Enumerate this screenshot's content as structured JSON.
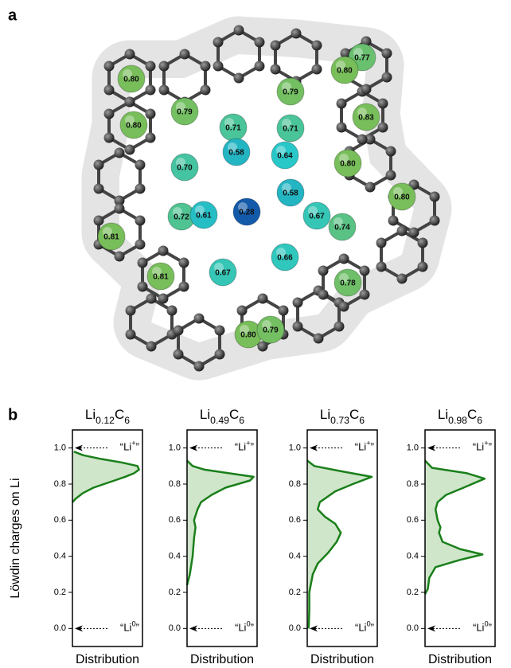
{
  "panel_a": {
    "label": "a",
    "li_sites": {
      "values": [
        0.8,
        0.79,
        0.8,
        0.71,
        0.58,
        0.7,
        0.72,
        0.61,
        0.28,
        0.81,
        0.81,
        0.67,
        0.71,
        0.64,
        0.58,
        0.67,
        0.74,
        0.66,
        0.78,
        0.8,
        0.79,
        0.79,
        0.77,
        0.8,
        0.83,
        0.8,
        0.8
      ],
      "value_labels": [
        "0.80",
        "0.79",
        "0.80",
        "0.71",
        "0.58",
        "0.70",
        "0.72",
        "0.61",
        "0.28",
        "0.81",
        "0.81",
        "0.67",
        "0.71",
        "0.64",
        "0.58",
        "0.67",
        "0.74",
        "0.66",
        "0.78",
        "0.80",
        "0.79",
        "0.79",
        "0.77",
        "0.80",
        "0.83",
        "0.80",
        "0.80"
      ]
    }
  },
  "panel_b": {
    "label": "b"
  },
  "chart_data": [
    {
      "type": "density",
      "title_parts": [
        "Li",
        "0.12",
        "C",
        "6"
      ],
      "ylabel": "Löwdin charges on Li",
      "xlabel": "Distribution",
      "color": "#1a7f1a",
      "fill": "#cfe6cb",
      "y": [
        0.7,
        0.72,
        0.75,
        0.78,
        0.8,
        0.82,
        0.84,
        0.86,
        0.88,
        0.9,
        0.92,
        0.94,
        0.96,
        0.98
      ],
      "values": [
        0.0,
        0.05,
        0.15,
        0.3,
        0.45,
        0.6,
        0.75,
        0.88,
        0.95,
        0.93,
        0.7,
        0.4,
        0.15,
        0.02
      ],
      "xlim": [
        0,
        1
      ],
      "ylim": [
        -0.1,
        1.1
      ],
      "yticks": [
        {
          "value": 0,
          "label": "0.0"
        },
        {
          "value": 0.2,
          "label": "0.2"
        },
        {
          "value": 0.4,
          "label": "0.4"
        },
        {
          "value": 0.6,
          "label": "0.6"
        },
        {
          "value": 0.8,
          "label": "0.8"
        },
        {
          "value": 1,
          "label": "1.0"
        }
      ],
      "annotations": [
        {
          "y": 1,
          "text_parts": [
            "“Li",
            "+",
            "”"
          ]
        },
        {
          "y": 0,
          "text_parts": [
            "“Li",
            "0",
            "”"
          ]
        }
      ]
    },
    {
      "type": "density",
      "title_parts": [
        "Li",
        "0.49",
        "C",
        "6"
      ],
      "xlabel": "Distribution",
      "color": "#1a7f1a",
      "fill": "#cfe6cb",
      "y": [
        0.24,
        0.3,
        0.4,
        0.5,
        0.56,
        0.6,
        0.66,
        0.7,
        0.74,
        0.78,
        0.82,
        0.84,
        0.86,
        0.88,
        0.9,
        0.93
      ],
      "values": [
        0.0,
        0.04,
        0.08,
        0.1,
        0.12,
        0.1,
        0.15,
        0.2,
        0.35,
        0.55,
        0.9,
        0.95,
        0.6,
        0.25,
        0.08,
        0.0
      ],
      "xlim": [
        0,
        1
      ],
      "ylim": [
        -0.1,
        1.1
      ],
      "yticks": [
        {
          "value": 0,
          "label": "0.0"
        },
        {
          "value": 0.2,
          "label": "0.2"
        },
        {
          "value": 0.4,
          "label": "0.4"
        },
        {
          "value": 0.6,
          "label": "0.6"
        },
        {
          "value": 0.8,
          "label": "0.8"
        },
        {
          "value": 1,
          "label": "1.0"
        }
      ],
      "annotations": [
        {
          "y": 1,
          "text_parts": [
            "“Li",
            "+",
            "”"
          ]
        },
        {
          "y": 0,
          "text_parts": [
            "“Li",
            "0",
            "”"
          ]
        }
      ]
    },
    {
      "type": "density",
      "title_parts": [
        "Li",
        "0.73",
        "C",
        "6"
      ],
      "xlabel": "Distribution",
      "color": "#1a7f1a",
      "fill": "#cfe6cb",
      "y": [
        0.0,
        0.1,
        0.2,
        0.3,
        0.36,
        0.42,
        0.48,
        0.53,
        0.58,
        0.62,
        0.66,
        0.7,
        0.76,
        0.8,
        0.84,
        0.87,
        0.9,
        0.93
      ],
      "values": [
        0.02,
        0.03,
        0.03,
        0.08,
        0.15,
        0.3,
        0.42,
        0.48,
        0.4,
        0.25,
        0.15,
        0.18,
        0.4,
        0.65,
        0.92,
        0.5,
        0.1,
        0.0
      ],
      "xlim": [
        0,
        1
      ],
      "ylim": [
        -0.1,
        1.1
      ],
      "yticks": [
        {
          "value": 0,
          "label": "0.0"
        },
        {
          "value": 0.2,
          "label": "0.2"
        },
        {
          "value": 0.4,
          "label": "0.4"
        },
        {
          "value": 0.6,
          "label": "0.6"
        },
        {
          "value": 0.8,
          "label": "0.8"
        },
        {
          "value": 1,
          "label": "1.0"
        }
      ],
      "annotations": [
        {
          "y": 1,
          "text_parts": [
            "“Li",
            "+",
            "”"
          ]
        },
        {
          "y": 0,
          "text_parts": [
            "“Li",
            "0",
            "”"
          ]
        }
      ]
    },
    {
      "type": "density",
      "title_parts": [
        "Li",
        "0.98",
        "C",
        "6"
      ],
      "xlabel": "Distribution",
      "color": "#1a7f1a",
      "fill": "#cfe6cb",
      "y": [
        0.19,
        0.22,
        0.28,
        0.34,
        0.38,
        0.41,
        0.44,
        0.48,
        0.53,
        0.56,
        0.6,
        0.66,
        0.7,
        0.74,
        0.78,
        0.83,
        0.86,
        0.89,
        0.93
      ],
      "values": [
        0.0,
        0.04,
        0.06,
        0.15,
        0.5,
        0.82,
        0.5,
        0.25,
        0.2,
        0.22,
        0.18,
        0.15,
        0.18,
        0.3,
        0.55,
        0.85,
        0.6,
        0.1,
        0.0
      ],
      "xlim": [
        0,
        1
      ],
      "ylim": [
        -0.1,
        1.1
      ],
      "yticks": [
        {
          "value": 0,
          "label": "0.0"
        },
        {
          "value": 0.2,
          "label": "0.2"
        },
        {
          "value": 0.4,
          "label": "0.4"
        },
        {
          "value": 0.6,
          "label": "0.6"
        },
        {
          "value": 0.8,
          "label": "0.8"
        },
        {
          "value": 1,
          "label": "1.0"
        }
      ],
      "annotations": [
        {
          "y": 1,
          "text_parts": [
            "“Li",
            "+",
            "”"
          ]
        },
        {
          "y": 0,
          "text_parts": [
            "“Li",
            "0",
            "”"
          ]
        }
      ]
    }
  ]
}
